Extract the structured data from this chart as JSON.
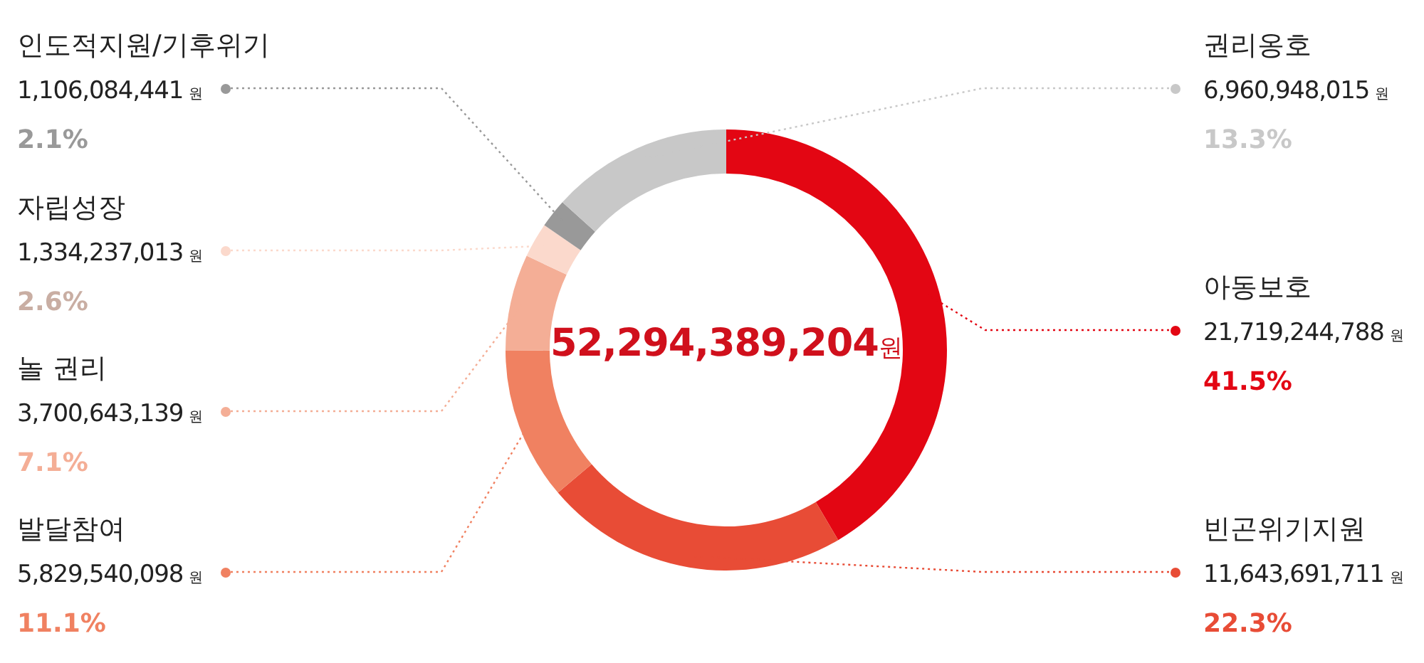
{
  "chart_data": {
    "type": "donut",
    "title": "52,294,389,204원",
    "categories": [
      "아동보호",
      "빈곤위기지원",
      "발달참여",
      "놀 권리",
      "자립성장",
      "인도적지원/기후위기",
      "권리옹호"
    ],
    "values": [
      21719244788,
      11643691711,
      5829540098,
      3700643139,
      1334237013,
      1106084441,
      6960948015
    ],
    "colors": [
      "#e30613",
      "#e84c36",
      "#f08161",
      "#f4ae96",
      "#fbd9cc",
      "#999999",
      "#c8c8c8"
    ],
    "value_labels": [
      "21,719,244,788 원",
      "11,643,691,711 원",
      "5,829,540,098 원",
      "3,700,643,139 원",
      "1,334,237,013 원",
      "1,106,084,441 원",
      "6,960,948,015 원"
    ],
    "annotations": [
      "41.5%",
      "22.3%",
      "11.1%",
      "7.1%",
      "2.6%",
      "2.1%",
      "13.3%"
    ],
    "legend": false
  }
}
